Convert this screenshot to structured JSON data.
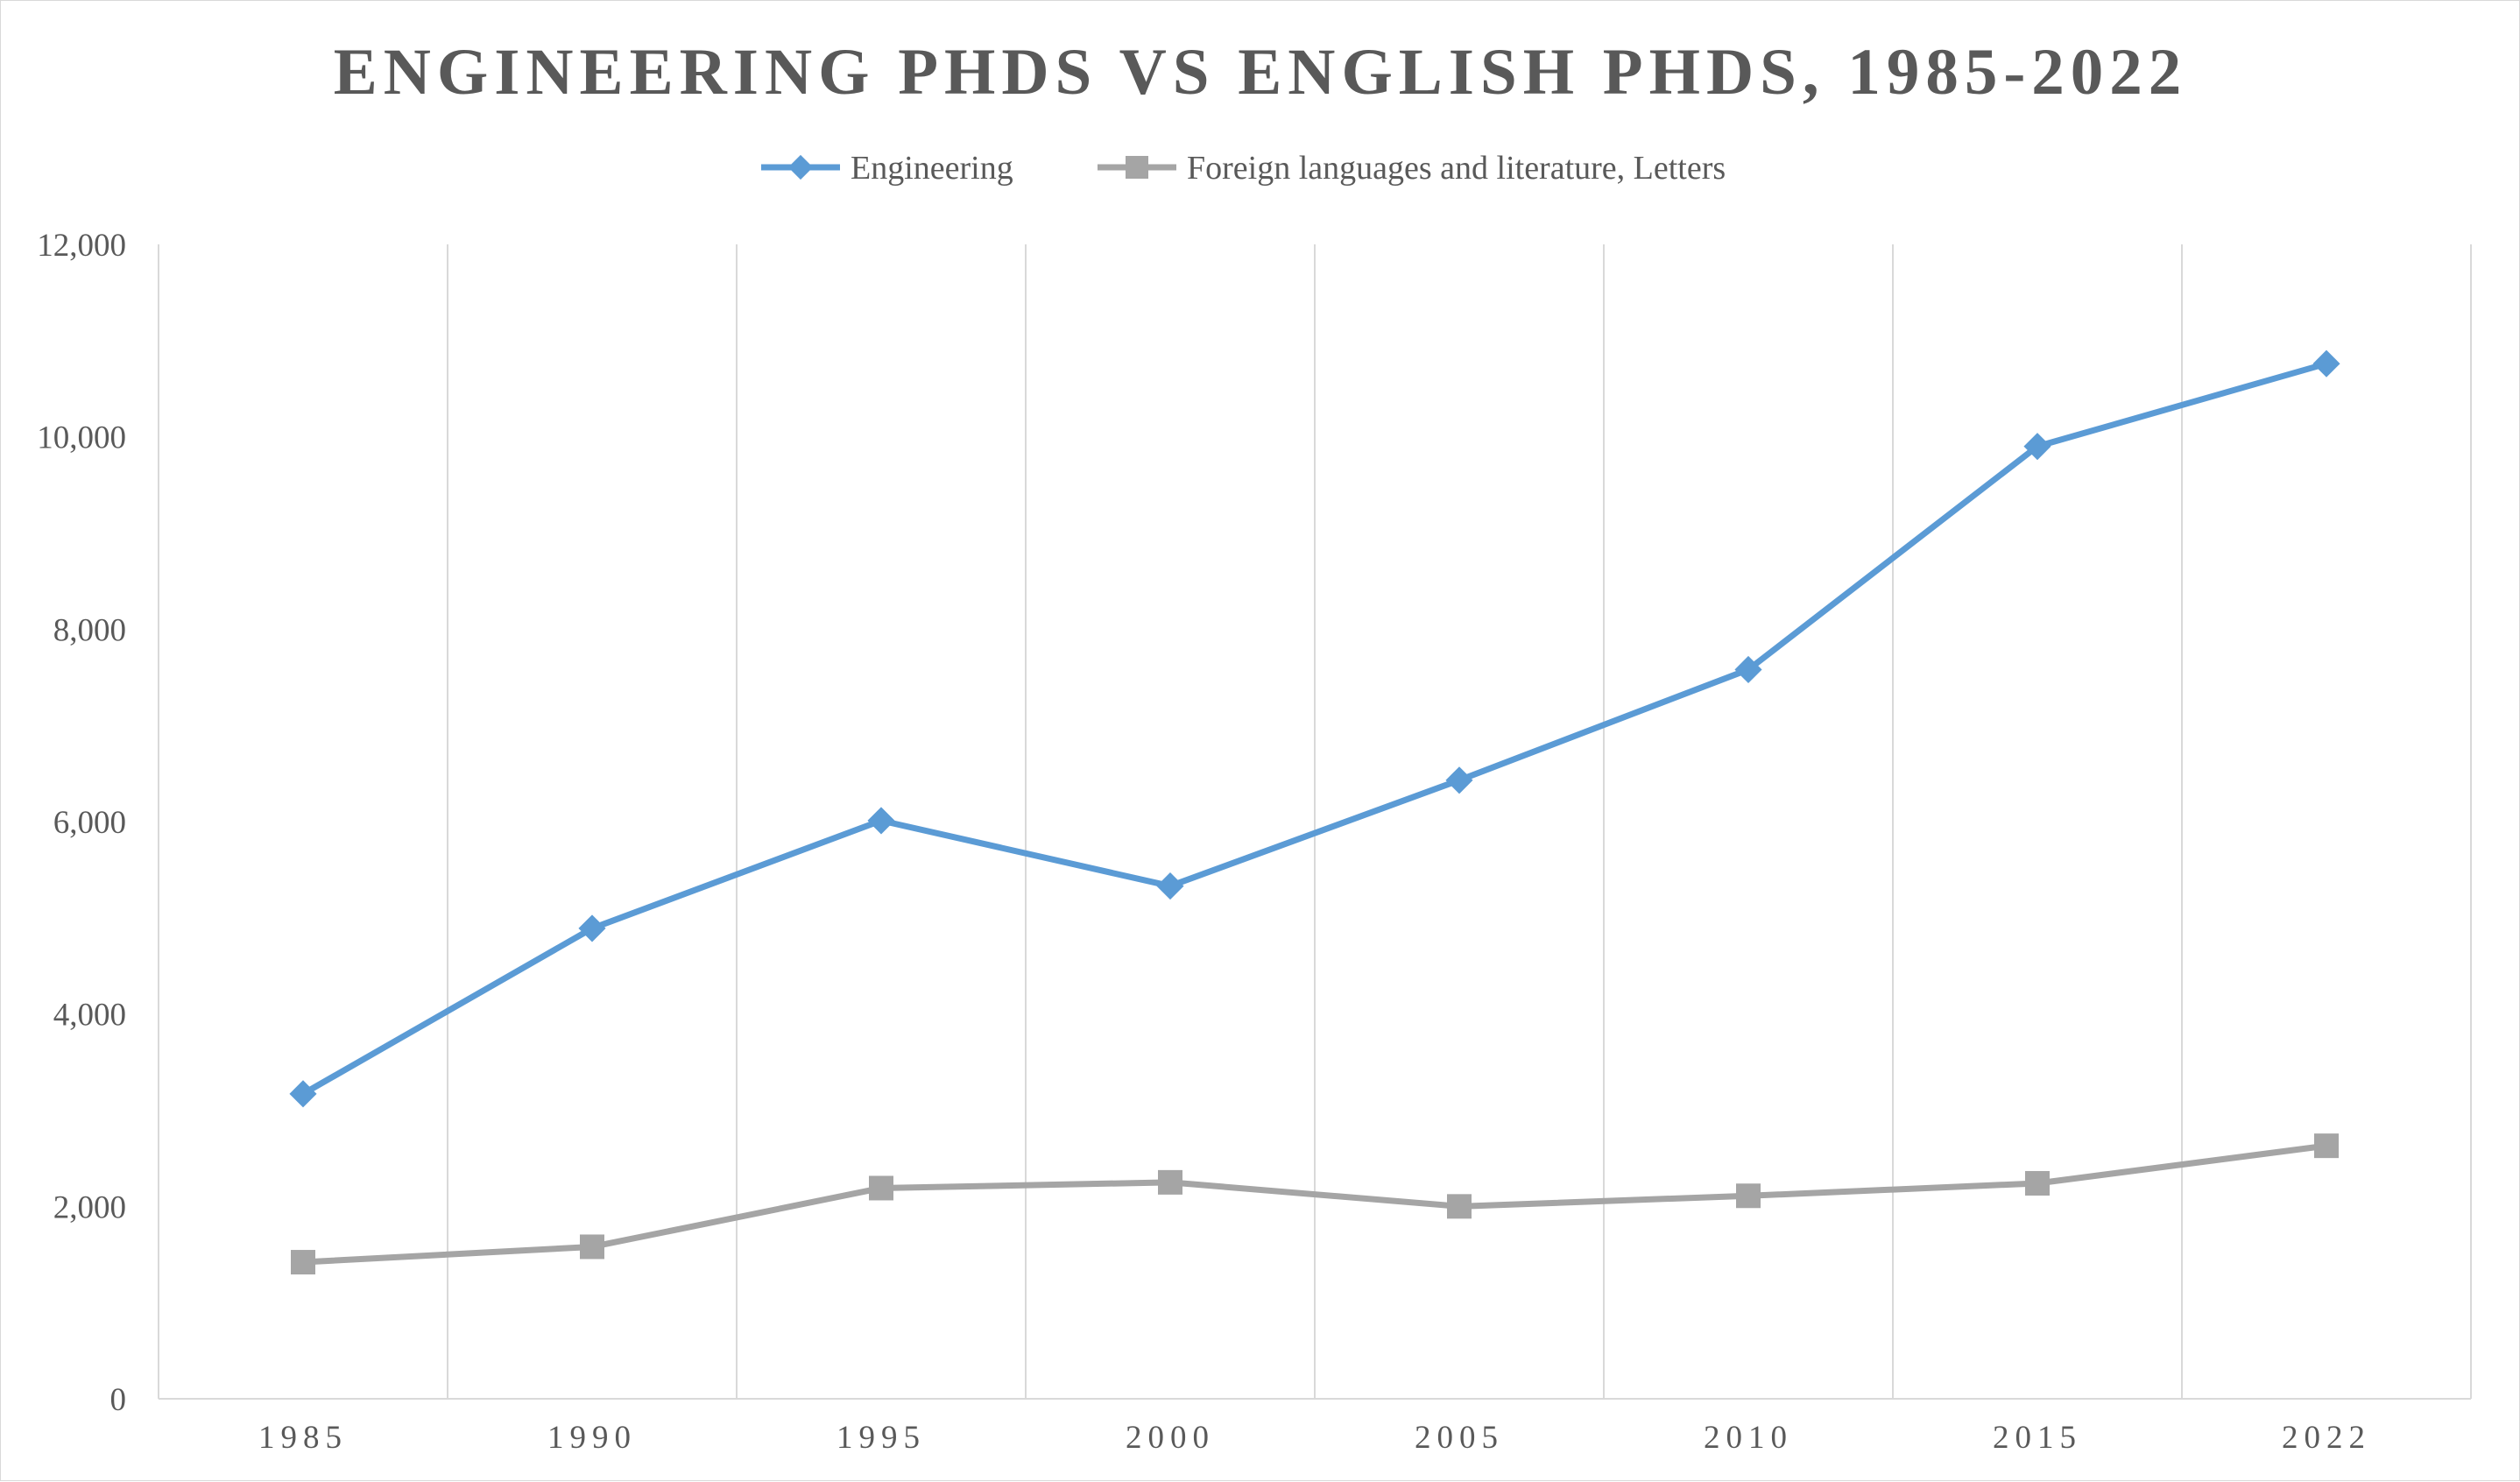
{
  "chart_data": {
    "type": "line",
    "title": "ENGINEERING PHDS VS ENGLISH PHDS, 1985-2022",
    "xlabel": "",
    "ylabel": "",
    "categories": [
      "1985",
      "1990",
      "1995",
      "2000",
      "2005",
      "2010",
      "2015",
      "2022"
    ],
    "y_ticks": [
      "0",
      "2,000",
      "4,000",
      "6,000",
      "8,000",
      "10,000",
      "12,000"
    ],
    "ylim": [
      0,
      12000
    ],
    "grid": "vertical",
    "legend_position": "top",
    "series": [
      {
        "name": "Engineering",
        "color": "#5b9bd5",
        "marker": "diamond",
        "values": [
          3170,
          4890,
          6010,
          5330,
          6430,
          7580,
          9900,
          10760
        ]
      },
      {
        "name": "Foreign languages and literature, Letters",
        "color": "#a5a5a5",
        "marker": "square",
        "values": [
          1420,
          1580,
          2190,
          2250,
          2000,
          2110,
          2240,
          2630
        ]
      }
    ]
  }
}
